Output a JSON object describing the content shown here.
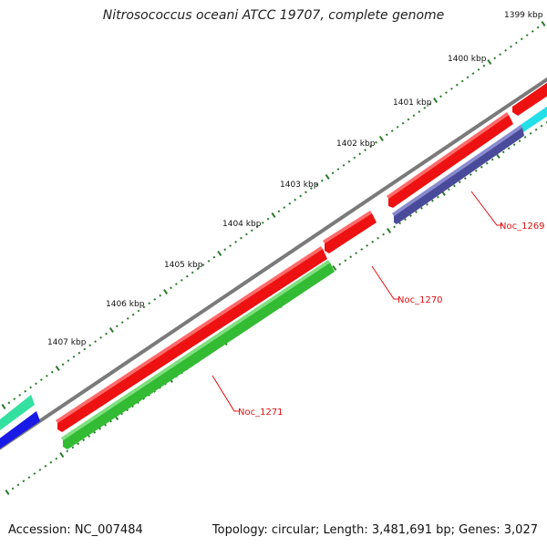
{
  "title": "Nitrosococcus oceani ATCC 19707, complete genome",
  "accession_label": "Accession: NC_007484",
  "summary_label": "Topology: circular; Length: 3,481,691 bp; Genes: 3,027",
  "ruler": {
    "labels": [
      "1399 kbp",
      "1400 kbp",
      "1401 kbp",
      "1402 kbp",
      "1403 kbp",
      "1404 kbp",
      "1405 kbp",
      "1406 kbp",
      "1407 kbp"
    ]
  },
  "genes": [
    {
      "label": "Noc_1269"
    },
    {
      "label": "Noc_1270"
    },
    {
      "label": "Noc_1271"
    }
  ],
  "colors": {
    "backbone": "#7a7a7a",
    "forward_gene": "#ee1111",
    "gene_1269_track": "#4a4a9a",
    "gene_1271_track": "#33bb33",
    "offscreen_cyan": "#22e0e8",
    "offscreen_teal": "#33e0a0",
    "offscreen_blue": "#1a1ae6",
    "tick": "#2a7a2a",
    "label_red": "#dd1111"
  }
}
